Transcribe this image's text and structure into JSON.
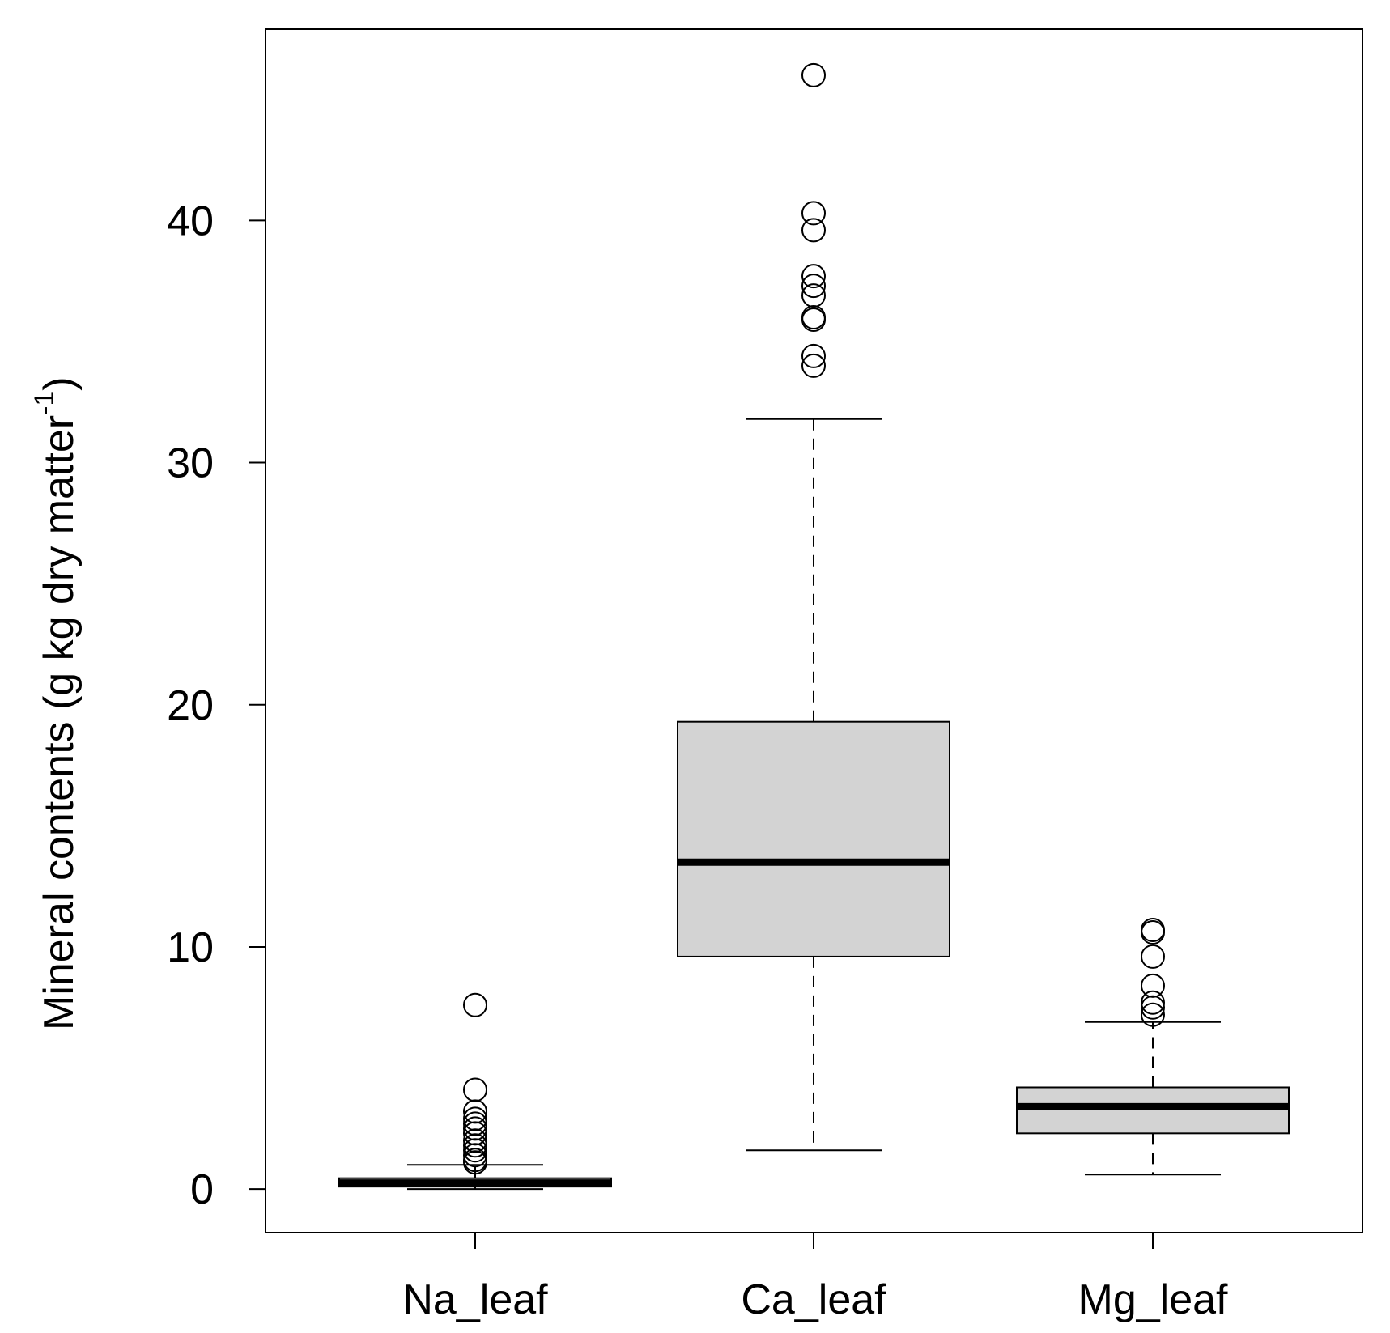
{
  "chart_data": {
    "type": "boxplot",
    "title": "",
    "xlabel": "",
    "ylabel": "Mineral contents (g kg dry matter",
    "ylabel_superscript": "-1",
    "ylabel_suffix": ")",
    "ylim": [
      -1.8,
      47.9
    ],
    "yticks": [
      0,
      10,
      20,
      30,
      40
    ],
    "ytick_labels": [
      "0",
      "10",
      "20",
      "30",
      "40"
    ],
    "categories": [
      "Na_leaf",
      "Ca_leaf",
      "Mg_leaf"
    ],
    "box_fill": "#d3d3d3",
    "series": [
      {
        "name": "Na_leaf",
        "whisker_low": 0.0,
        "q1": 0.1,
        "median": 0.25,
        "q3": 0.45,
        "whisker_high": 1.0,
        "outliers": [
          7.6,
          4.1,
          3.2,
          2.9,
          2.7,
          2.5,
          2.3,
          2.0,
          1.8,
          1.6,
          1.4,
          1.2,
          1.1
        ]
      },
      {
        "name": "Ca_leaf",
        "whisker_low": 1.6,
        "q1": 9.6,
        "median": 13.5,
        "q3": 19.3,
        "whisker_high": 31.8,
        "outliers": [
          46.0,
          40.3,
          39.6,
          37.7,
          37.3,
          36.9,
          36.0,
          35.9,
          34.4,
          34.0
        ]
      },
      {
        "name": "Mg_leaf",
        "whisker_low": 0.6,
        "q1": 2.3,
        "median": 3.4,
        "q3": 4.2,
        "whisker_high": 6.9,
        "outliers": [
          10.7,
          10.6,
          9.6,
          8.4,
          7.7,
          7.5,
          7.2
        ]
      }
    ]
  }
}
